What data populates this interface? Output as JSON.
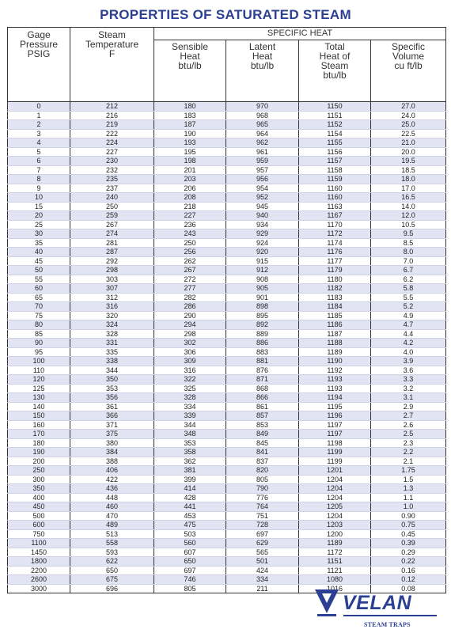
{
  "title": "PROPERTIES OF SATURATED STEAM",
  "group_header": "SPECIFIC HEAT",
  "columns": {
    "pressure": [
      "Gage",
      "Pressure",
      "PSIG"
    ],
    "temperature": [
      "Steam",
      "Temperature",
      "F"
    ],
    "sensible": [
      "Sensible",
      "Heat",
      "btu/lb"
    ],
    "latent": [
      "Latent",
      "Heat",
      "btu/lb"
    ],
    "total": [
      "Total",
      "Heat of",
      "Steam",
      "btu/lb"
    ],
    "volume": [
      "Specific",
      "Volume",
      "cu ft/lb"
    ]
  },
  "rows": [
    [
      "0",
      "212",
      "180",
      "970",
      "1150",
      "27.0"
    ],
    [
      "1",
      "216",
      "183",
      "968",
      "1151",
      "24.0"
    ],
    [
      "2",
      "219",
      "187",
      "965",
      "1152",
      "25.0"
    ],
    [
      "3",
      "222",
      "190",
      "964",
      "1154",
      "22.5"
    ],
    [
      "4",
      "224",
      "193",
      "962",
      "1155",
      "21.0"
    ],
    [
      "5",
      "227",
      "195",
      "961",
      "1156",
      "20.0"
    ],
    [
      "6",
      "230",
      "198",
      "959",
      "1157",
      "19.5"
    ],
    [
      "7",
      "232",
      "201",
      "957",
      "1158",
      "18.5"
    ],
    [
      "8",
      "235",
      "203",
      "956",
      "1159",
      "18.0"
    ],
    [
      "9",
      "237",
      "206",
      "954",
      "1160",
      "17.0"
    ],
    [
      "10",
      "240",
      "208",
      "952",
      "1160",
      "16.5"
    ],
    [
      "15",
      "250",
      "218",
      "945",
      "1163",
      "14.0"
    ],
    [
      "20",
      "259",
      "227",
      "940",
      "1167",
      "12.0"
    ],
    [
      "25",
      "267",
      "236",
      "934",
      "1170",
      "10.5"
    ],
    [
      "30",
      "274",
      "243",
      "929",
      "1172",
      "9.5"
    ],
    [
      "35",
      "281",
      "250",
      "924",
      "1174",
      "8.5"
    ],
    [
      "40",
      "287",
      "256",
      "920",
      "1176",
      "8.0"
    ],
    [
      "45",
      "292",
      "262",
      "915",
      "1177",
      "7.0"
    ],
    [
      "50",
      "298",
      "267",
      "912",
      "1179",
      "6.7"
    ],
    [
      "55",
      "303",
      "272",
      "908",
      "1180",
      "6.2"
    ],
    [
      "60",
      "307",
      "277",
      "905",
      "1182",
      "5.8"
    ],
    [
      "65",
      "312",
      "282",
      "901",
      "1183",
      "5.5"
    ],
    [
      "70",
      "316",
      "286",
      "898",
      "1184",
      "5.2"
    ],
    [
      "75",
      "320",
      "290",
      "895",
      "1185",
      "4.9"
    ],
    [
      "80",
      "324",
      "294",
      "892",
      "1186",
      "4.7"
    ],
    [
      "85",
      "328",
      "298",
      "889",
      "1187",
      "4.4"
    ],
    [
      "90",
      "331",
      "302",
      "886",
      "1188",
      "4.2"
    ],
    [
      "95",
      "335",
      "306",
      "883",
      "1189",
      "4.0"
    ],
    [
      "100",
      "338",
      "309",
      "881",
      "1190",
      "3.9"
    ],
    [
      "110",
      "344",
      "316",
      "876",
      "1192",
      "3.6"
    ],
    [
      "120",
      "350",
      "322",
      "871",
      "1193",
      "3.3"
    ],
    [
      "125",
      "353",
      "325",
      "868",
      "1193",
      "3.2"
    ],
    [
      "130",
      "356",
      "328",
      "866",
      "1194",
      "3.1"
    ],
    [
      "140",
      "361",
      "334",
      "861",
      "1195",
      "2.9"
    ],
    [
      "150",
      "366",
      "339",
      "857",
      "1196",
      "2.7"
    ],
    [
      "160",
      "371",
      "344",
      "853",
      "1197",
      "2.6"
    ],
    [
      "170",
      "375",
      "348",
      "849",
      "1197",
      "2.5"
    ],
    [
      "180",
      "380",
      "353",
      "845",
      "1198",
      "2.3"
    ],
    [
      "190",
      "384",
      "358",
      "841",
      "1199",
      "2.2"
    ],
    [
      "200",
      "388",
      "362",
      "837",
      "1199",
      "2.1"
    ],
    [
      "250",
      "406",
      "381",
      "820",
      "1201",
      "1.75"
    ],
    [
      "300",
      "422",
      "399",
      "805",
      "1204",
      "1.5"
    ],
    [
      "350",
      "436",
      "414",
      "790",
      "1204",
      "1.3"
    ],
    [
      "400",
      "448",
      "428",
      "776",
      "1204",
      "1.1"
    ],
    [
      "450",
      "460",
      "441",
      "764",
      "1205",
      "1.0"
    ],
    [
      "500",
      "470",
      "453",
      "751",
      "1204",
      "0.90"
    ],
    [
      "600",
      "489",
      "475",
      "728",
      "1203",
      "0.75"
    ],
    [
      "750",
      "513",
      "503",
      "697",
      "1200",
      "0.45"
    ],
    [
      "1100",
      "558",
      "560",
      "629",
      "1189",
      "0.39"
    ],
    [
      "1450",
      "593",
      "607",
      "565",
      "1172",
      "0.29"
    ],
    [
      "1800",
      "622",
      "650",
      "501",
      "1151",
      "0.22"
    ],
    [
      "2200",
      "650",
      "697",
      "424",
      "1121",
      "0.16"
    ],
    [
      "2600",
      "675",
      "746",
      "334",
      "1080",
      "0.12"
    ],
    [
      "3000",
      "696",
      "805",
      "211",
      "1016",
      "0.08"
    ]
  ],
  "logo": {
    "name": "VELAN",
    "tagline": "STEAM TRAPS",
    "color": "#2b3f93"
  }
}
